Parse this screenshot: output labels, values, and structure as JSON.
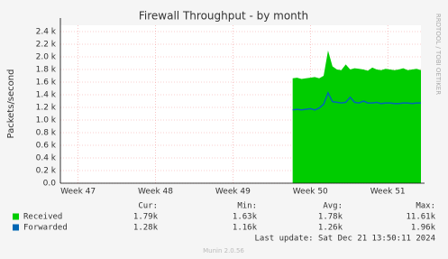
{
  "chart_data": {
    "type": "area",
    "title": "Firewall Throughput - by month",
    "y_label": "Packets/second",
    "side_label": "RRDTOOL / TOBI OETIKER",
    "last_update": "Last update: Sat Dec 21 13:50:11 2024",
    "footer": "Munin 2.0.56",
    "xlim": [
      0,
      32.6
    ],
    "xticks": [
      {
        "value": 1.6,
        "label": "Week 47"
      },
      {
        "value": 8.6,
        "label": "Week 48"
      },
      {
        "value": 15.6,
        "label": "Week 49"
      },
      {
        "value": 22.6,
        "label": "Week 50"
      },
      {
        "value": 29.6,
        "label": "Week 51"
      }
    ],
    "ylim": [
      0,
      2500
    ],
    "yticks": [
      {
        "value": 0,
        "label": "0.0"
      },
      {
        "value": 200,
        "label": "0.2 k"
      },
      {
        "value": 400,
        "label": "0.4 k"
      },
      {
        "value": 600,
        "label": "0.6 k"
      },
      {
        "value": 800,
        "label": "0.8 k"
      },
      {
        "value": 1000,
        "label": "1.0 k"
      },
      {
        "value": 1200,
        "label": "1.2 k"
      },
      {
        "value": 1400,
        "label": "1.4 k"
      },
      {
        "value": 1600,
        "label": "1.6 k"
      },
      {
        "value": 1800,
        "label": "1.8 k"
      },
      {
        "value": 2000,
        "label": "2.0 k"
      },
      {
        "value": 2200,
        "label": "2.2 k"
      },
      {
        "value": 2400,
        "label": "2.4 k"
      }
    ],
    "grid": true,
    "x": [
      21.0,
      21.4,
      21.8,
      22.2,
      22.6,
      23.0,
      23.4,
      23.8,
      24.2,
      24.6,
      25.0,
      25.4,
      25.8,
      26.2,
      26.6,
      27.0,
      27.4,
      27.8,
      28.2,
      28.6,
      29.0,
      29.4,
      29.8,
      30.2,
      30.6,
      31.0,
      31.4,
      31.8,
      32.2,
      32.6
    ],
    "series": [
      {
        "name": "Received",
        "color": "#00cc00",
        "style": "area",
        "values": [
          1660,
          1670,
          1650,
          1660,
          1670,
          1680,
          1660,
          1700,
          2100,
          1850,
          1800,
          1790,
          1880,
          1800,
          1820,
          1810,
          1800,
          1780,
          1830,
          1800,
          1790,
          1810,
          1800,
          1790,
          1800,
          1820,
          1790,
          1800,
          1810,
          1790
        ]
      },
      {
        "name": "Forwarded",
        "color": "#0066b3",
        "style": "line",
        "values": [
          1160,
          1170,
          1160,
          1170,
          1180,
          1160,
          1190,
          1250,
          1430,
          1290,
          1280,
          1270,
          1280,
          1360,
          1280,
          1270,
          1300,
          1270,
          1270,
          1280,
          1260,
          1270,
          1270,
          1260,
          1260,
          1270,
          1270,
          1260,
          1270,
          1270
        ]
      }
    ],
    "stats_headers": [
      "Cur:",
      "Min:",
      "Avg:",
      "Max:"
    ],
    "stats": [
      [
        "1.79k",
        "1.63k",
        "1.78k",
        "11.61k"
      ],
      [
        "1.28k",
        "1.16k",
        "1.26k",
        "1.96k"
      ]
    ]
  }
}
